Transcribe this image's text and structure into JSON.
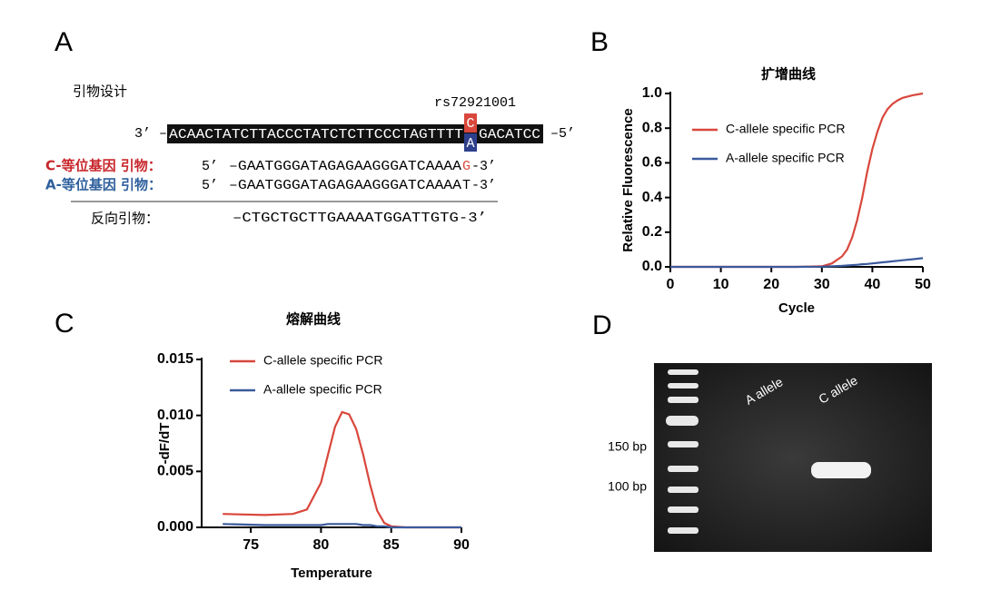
{
  "panel_a": {
    "label": "A",
    "title": "引物设计",
    "snp": "rs72921001",
    "template": {
      "prime3": "3’ –",
      "seq_left": "ACAACTATCTTACCCTATCTCTTCCCTAGTTTT",
      "allele_top": "C",
      "allele_bottom": "A",
      "seq_right": "GACATCC",
      "prime5": "–5’"
    },
    "primers": [
      {
        "name": "C-等位基因 引物：",
        "prime5": "5’",
        "seq": "–GAATGGGATAGAGAAGGGATCAAAA",
        "end": "G",
        "prime3": "-3’"
      },
      {
        "name": "A-等位基因 引物：",
        "prime5": "5’",
        "seq": "–GAATGGGATAGAGAAGGGATCAAAA",
        "end": "T",
        "prime3": "-3’"
      }
    ],
    "reverse": {
      "name": "反向引物：",
      "seq": "–CTGCTGCTTGAAAATGGATTGTG-3’"
    }
  },
  "chart_data": [
    {
      "type": "line",
      "panel": "B",
      "title": "扩增曲线",
      "x_label": "Cycle",
      "y_label": "Relative Fluorescence",
      "x": [
        0,
        5,
        10,
        15,
        20,
        25,
        30,
        32,
        34,
        35,
        36,
        37,
        38,
        39,
        40,
        41,
        42,
        43,
        44,
        45,
        46,
        48,
        50
      ],
      "series": [
        {
          "name": "C-allele specific PCR",
          "color": "#d9473c",
          "values": [
            0,
            0,
            0,
            0,
            0,
            0,
            0.003,
            0.02,
            0.06,
            0.1,
            0.17,
            0.27,
            0.4,
            0.55,
            0.68,
            0.78,
            0.86,
            0.91,
            0.94,
            0.96,
            0.975,
            0.99,
            1.0
          ]
        },
        {
          "name": "A-allele specific PCR",
          "color": "#3a5a9c",
          "values": [
            0,
            0,
            0,
            0,
            0,
            0,
            0.001,
            0.003,
            0.006,
            0.008,
            0.01,
            0.012,
            0.015,
            0.017,
            0.02,
            0.023,
            0.026,
            0.029,
            0.032,
            0.035,
            0.038,
            0.044,
            0.05
          ]
        }
      ],
      "xlim": [
        0,
        50
      ],
      "xticks": [
        0,
        10,
        20,
        30,
        40,
        50
      ],
      "ylim": [
        0,
        1.0
      ],
      "yticks": [
        {
          "value": 0,
          "label": "0.0"
        },
        0.2,
        0.4,
        0.6,
        0.8,
        {
          "value": 1.0,
          "label": "1.0"
        }
      ],
      "legend": "upper-left"
    },
    {
      "type": "line",
      "panel": "C",
      "title": "熔解曲线",
      "x_label": "Temperature",
      "y_label": "-dF/dT",
      "x": [
        73,
        76,
        78,
        79,
        80,
        80.5,
        81,
        81.5,
        82,
        82.5,
        83,
        83.5,
        84,
        84.5,
        85,
        86,
        88,
        90
      ],
      "series": [
        {
          "name": "C-allele specific PCR",
          "color": "#d9473c",
          "values": [
            0.0012,
            0.0011,
            0.0012,
            0.0016,
            0.004,
            0.0065,
            0.009,
            0.0103,
            0.0101,
            0.0088,
            0.0065,
            0.0038,
            0.0015,
            0.0004,
            0.0001,
            0,
            0,
            0
          ]
        },
        {
          "name": "A-allele specific PCR",
          "color": "#3a5a9c",
          "values": [
            0.0003,
            0.0002,
            0.0002,
            0.0002,
            0.0002,
            0.0003,
            0.0003,
            0.0003,
            0.0003,
            0.0003,
            0.0002,
            0.0002,
            0.0001,
            0.0001,
            0,
            0,
            0,
            0
          ]
        }
      ],
      "xlim": [
        71.5,
        90
      ],
      "xticks": [
        75,
        80,
        85,
        90
      ],
      "ylim": [
        0,
        0.015
      ],
      "yticks": [
        {
          "value": 0,
          "label": "0.000"
        },
        {
          "value": 0.005,
          "label": "0.005"
        },
        {
          "value": 0.01,
          "label": "0.010"
        },
        {
          "value": 0.015,
          "label": "0.015"
        }
      ],
      "legend": "upper-left"
    }
  ],
  "panel_d": {
    "label": "D",
    "markers": [
      "150 bp",
      "100 bp"
    ],
    "lanes": [
      "A allele",
      "C allele"
    ]
  }
}
